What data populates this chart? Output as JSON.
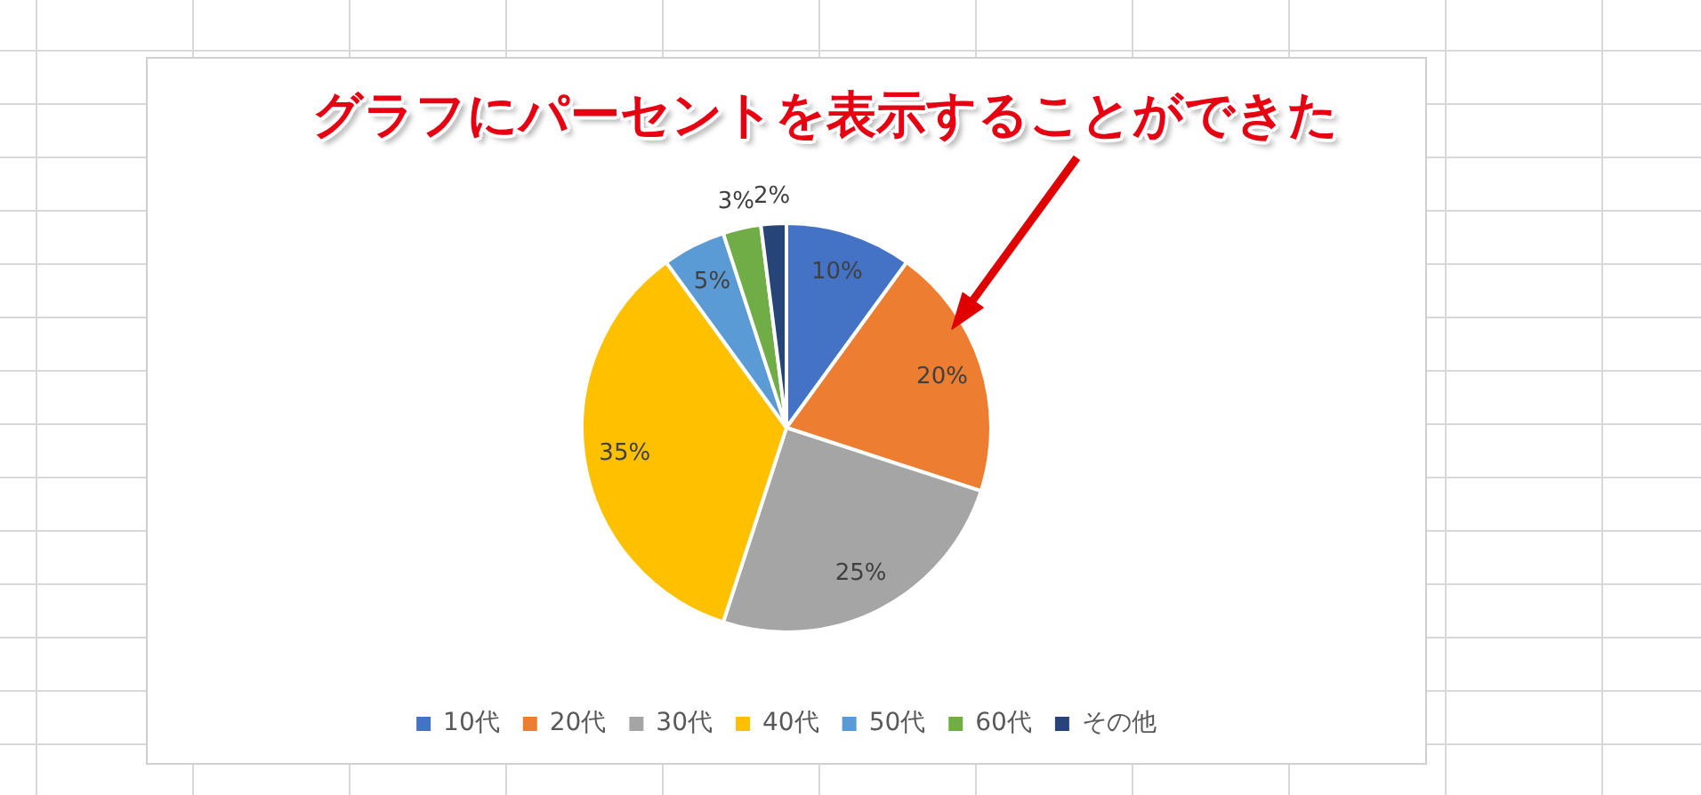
{
  "chart_data": {
    "type": "pie",
    "annotations": [
      "グラフにパーセントを表示することができた"
    ],
    "categories": [
      "10代",
      "20代",
      "30代",
      "40代",
      "50代",
      "60代",
      "その他"
    ],
    "values": [
      10,
      20,
      25,
      35,
      5,
      3,
      2
    ],
    "colors": [
      "#4472c4",
      "#ed7d31",
      "#a5a5a5",
      "#ffc000",
      "#5b9bd5",
      "#70ad47",
      "#264478"
    ],
    "value_labels": [
      "10%",
      "20%",
      "25%",
      "35%",
      "5%",
      "3%",
      "2%"
    ],
    "legend": "bottom"
  }
}
